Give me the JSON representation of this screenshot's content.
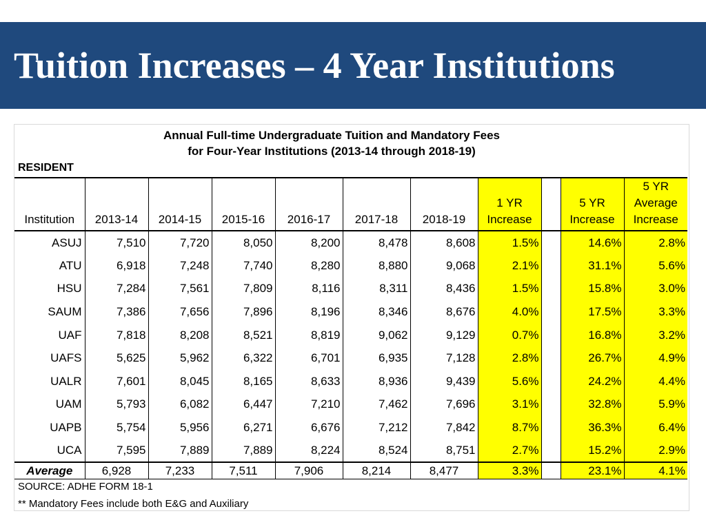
{
  "slide_title": "Tuition Increases – 4 Year Institutions",
  "table_heading_line1": "Annual Full-time Undergraduate Tuition and Mandatory Fees",
  "table_heading_line2": "for Four-Year Institutions (2013-14 through 2018-19)",
  "section_label": "RESIDENT",
  "columns": {
    "institution": "Institution",
    "y1": "2013-14",
    "y2": "2014-15",
    "y3": "2015-16",
    "y4": "2016-17",
    "y5": "2017-18",
    "y6": "2018-19",
    "one_yr": [
      "1 YR",
      "Increase"
    ],
    "five_yr": [
      "5 YR",
      "Increase"
    ],
    "five_yr_avg": [
      "5 YR",
      "Average",
      "Increase"
    ]
  },
  "highlight_color": "#ffff00",
  "banner_color": "#1f497d",
  "rows": [
    {
      "inst": "ASUJ",
      "v": [
        "7,510",
        "7,720",
        "8,050",
        "8,200",
        "8,478",
        "8,608"
      ],
      "one": "1.5%",
      "five": "14.6%",
      "avg": "2.8%"
    },
    {
      "inst": "ATU",
      "v": [
        "6,918",
        "7,248",
        "7,740",
        "8,280",
        "8,880",
        "9,068"
      ],
      "one": "2.1%",
      "five": "31.1%",
      "avg": "5.6%"
    },
    {
      "inst": "HSU",
      "v": [
        "7,284",
        "7,561",
        "7,809",
        "8,116",
        "8,311",
        "8,436"
      ],
      "one": "1.5%",
      "five": "15.8%",
      "avg": "3.0%"
    },
    {
      "inst": "SAUM",
      "v": [
        "7,386",
        "7,656",
        "7,896",
        "8,196",
        "8,346",
        "8,676"
      ],
      "one": "4.0%",
      "five": "17.5%",
      "avg": "3.3%"
    },
    {
      "inst": "UAF",
      "v": [
        "7,818",
        "8,208",
        "8,521",
        "8,819",
        "9,062",
        "9,129"
      ],
      "one": "0.7%",
      "five": "16.8%",
      "avg": "3.2%"
    },
    {
      "inst": "UAFS",
      "v": [
        "5,625",
        "5,962",
        "6,322",
        "6,701",
        "6,935",
        "7,128"
      ],
      "one": "2.8%",
      "five": "26.7%",
      "avg": "4.9%"
    },
    {
      "inst": "UALR",
      "v": [
        "7,601",
        "8,045",
        "8,165",
        "8,633",
        "8,936",
        "9,439"
      ],
      "one": "5.6%",
      "five": "24.2%",
      "avg": "4.4%"
    },
    {
      "inst": "UAM",
      "v": [
        "5,793",
        "6,082",
        "6,447",
        "7,210",
        "7,462",
        "7,696"
      ],
      "one": "3.1%",
      "five": "32.8%",
      "avg": "5.9%"
    },
    {
      "inst": "UAPB",
      "v": [
        "5,754",
        "5,956",
        "6,271",
        "6,676",
        "7,212",
        "7,842"
      ],
      "one": "8.7%",
      "five": "36.3%",
      "avg": "6.4%"
    },
    {
      "inst": "UCA",
      "v": [
        "7,595",
        "7,889",
        "7,889",
        "8,224",
        "8,524",
        "8,751"
      ],
      "one": "2.7%",
      "five": "15.2%",
      "avg": "2.9%"
    }
  ],
  "average": {
    "inst": "Average",
    "v": [
      "6,928",
      "7,233",
      "7,511",
      "7,906",
      "8,214",
      "8,477"
    ],
    "one": "3.3%",
    "five": "23.1%",
    "avg": "4.1%"
  },
  "source": "SOURCE: ADHE FORM 18-1",
  "footnote": "** Mandatory Fees include both E&G and Auxiliary"
}
